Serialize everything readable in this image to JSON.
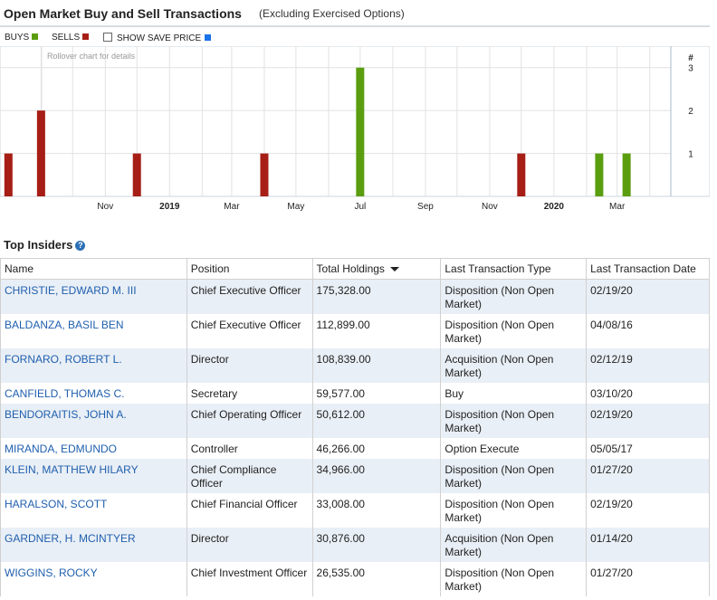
{
  "header": {
    "title": "Open Market Buy and Sell Transactions",
    "subtitle": "(Excluding Exercised Options)"
  },
  "legend": {
    "buys": "BUYS",
    "sells": "SELLS",
    "save_price": "SHOW SAVE PRICE"
  },
  "colors": {
    "buy": "#5a9e0f",
    "sell": "#a61e16",
    "save_price": "#1a73e8"
  },
  "chart_data": {
    "type": "bar",
    "hint": "Rollover chart for details",
    "y_axis_label": "#",
    "ylim": [
      0,
      3.5
    ],
    "y_ticks": [
      1,
      2,
      3
    ],
    "x_range": [
      "2018-07-24",
      "2020-04-21"
    ],
    "x_ticks": [
      {
        "date": "2018-11-01",
        "label": "Nov",
        "bold": false
      },
      {
        "date": "2019-01-01",
        "label": "2019",
        "bold": true
      },
      {
        "date": "2019-03-01",
        "label": "Mar",
        "bold": false
      },
      {
        "date": "2019-05-01",
        "label": "May",
        "bold": false
      },
      {
        "date": "2019-07-01",
        "label": "Jul",
        "bold": false
      },
      {
        "date": "2019-09-01",
        "label": "Sep",
        "bold": false
      },
      {
        "date": "2019-11-01",
        "label": "Nov",
        "bold": false
      },
      {
        "date": "2020-01-01",
        "label": "2020",
        "bold": true
      },
      {
        "date": "2020-03-01",
        "label": "Mar",
        "bold": false
      }
    ],
    "series": [
      {
        "name": "BUYS",
        "points": [
          {
            "date": "2019-07-01",
            "value": 3
          },
          {
            "date": "2020-02-13",
            "value": 1
          },
          {
            "date": "2020-03-10",
            "value": 1
          }
        ]
      },
      {
        "name": "SELLS",
        "points": [
          {
            "date": "2018-08-01",
            "value": 1
          },
          {
            "date": "2018-09-01",
            "value": 2
          },
          {
            "date": "2018-12-01",
            "value": 1
          },
          {
            "date": "2019-04-01",
            "value": 1
          },
          {
            "date": "2019-12-01",
            "value": 1
          }
        ]
      }
    ]
  },
  "insiders": {
    "title": "Top Insiders",
    "columns": [
      "Name",
      "Position",
      "Total Holdings",
      "Last Transaction Type",
      "Last Transaction Date"
    ],
    "rows": [
      {
        "name": "CHRISTIE, EDWARD M. III",
        "position": "Chief Executive Officer",
        "holdings": "175,328.00",
        "type": "Disposition (Non Open Market)",
        "date": "02/19/20"
      },
      {
        "name": "BALDANZA, BASIL BEN",
        "position": "Chief Executive Officer",
        "holdings": "112,899.00",
        "type": "Disposition (Non Open Market)",
        "date": "04/08/16"
      },
      {
        "name": "FORNARO, ROBERT L.",
        "position": "Director",
        "holdings": "108,839.00",
        "type": "Acquisition (Non Open Market)",
        "date": "02/12/19"
      },
      {
        "name": "CANFIELD, THOMAS C.",
        "position": "Secretary",
        "holdings": "59,577.00",
        "type": "Buy",
        "date": "03/10/20"
      },
      {
        "name": "BENDORAITIS, JOHN A.",
        "position": "Chief Operating Officer",
        "holdings": "50,612.00",
        "type": "Disposition (Non Open Market)",
        "date": "02/19/20"
      },
      {
        "name": "MIRANDA, EDMUNDO",
        "position": "Controller",
        "holdings": "46,266.00",
        "type": "Option Execute",
        "date": "05/05/17"
      },
      {
        "name": "KLEIN, MATTHEW HILARY",
        "position": "Chief Compliance Officer",
        "holdings": "34,966.00",
        "type": "Disposition (Non Open Market)",
        "date": "01/27/20"
      },
      {
        "name": "HARALSON, SCOTT",
        "position": "Chief Financial Officer",
        "holdings": "33,008.00",
        "type": "Disposition (Non Open Market)",
        "date": "02/19/20"
      },
      {
        "name": "GARDNER, H. MCINTYER",
        "position": "Director",
        "holdings": "30,876.00",
        "type": "Acquisition (Non Open Market)",
        "date": "01/14/20"
      },
      {
        "name": "WIGGINS, ROCKY",
        "position": "Chief Investment Officer",
        "holdings": "26,535.00",
        "type": "Disposition (Non Open Market)",
        "date": "01/27/20"
      }
    ]
  }
}
